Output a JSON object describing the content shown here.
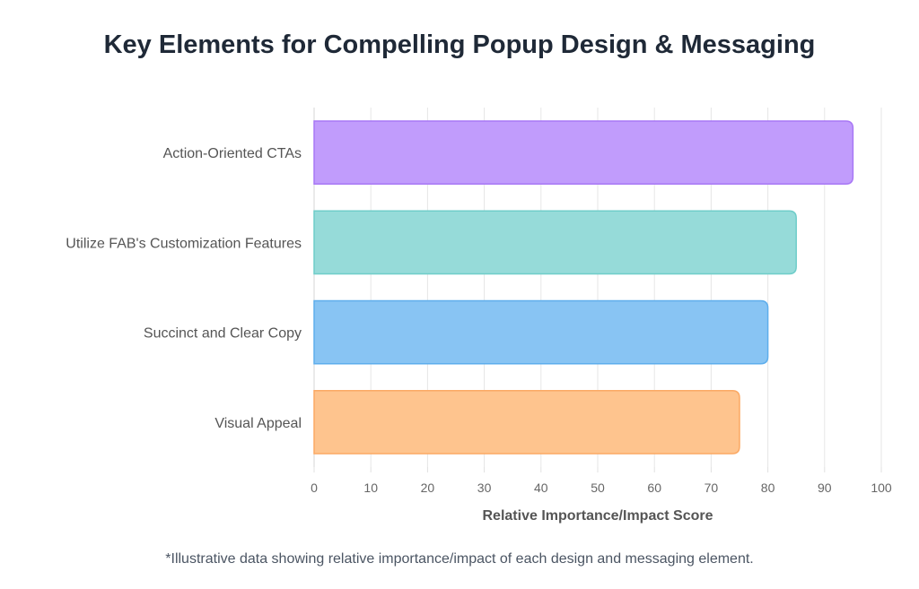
{
  "chart_data": {
    "type": "bar",
    "orientation": "horizontal",
    "title": "Key Elements for Compelling Popup Design & Messaging",
    "xlabel": "Relative Importance/Impact Score",
    "ylabel": "",
    "xlim": [
      0,
      100
    ],
    "xticks": [
      0,
      10,
      20,
      30,
      40,
      50,
      60,
      70,
      80,
      90,
      100
    ],
    "grid": true,
    "legend": "none",
    "categories": [
      "Action-Oriented CTAs",
      "Utilize FAB's Customization Features",
      "Succinct and Clear Copy",
      "Visual Appeal"
    ],
    "values": [
      95,
      85,
      80,
      75
    ],
    "colors": [
      "#c19cfc",
      "#96dbd9",
      "#88c4f3",
      "#fec48e"
    ],
    "border_colors": [
      "#a878f5",
      "#6fcdc9",
      "#5eaeec",
      "#fba964"
    ]
  },
  "footnote": "*Illustrative data showing relative importance/impact of each design and messaging element."
}
